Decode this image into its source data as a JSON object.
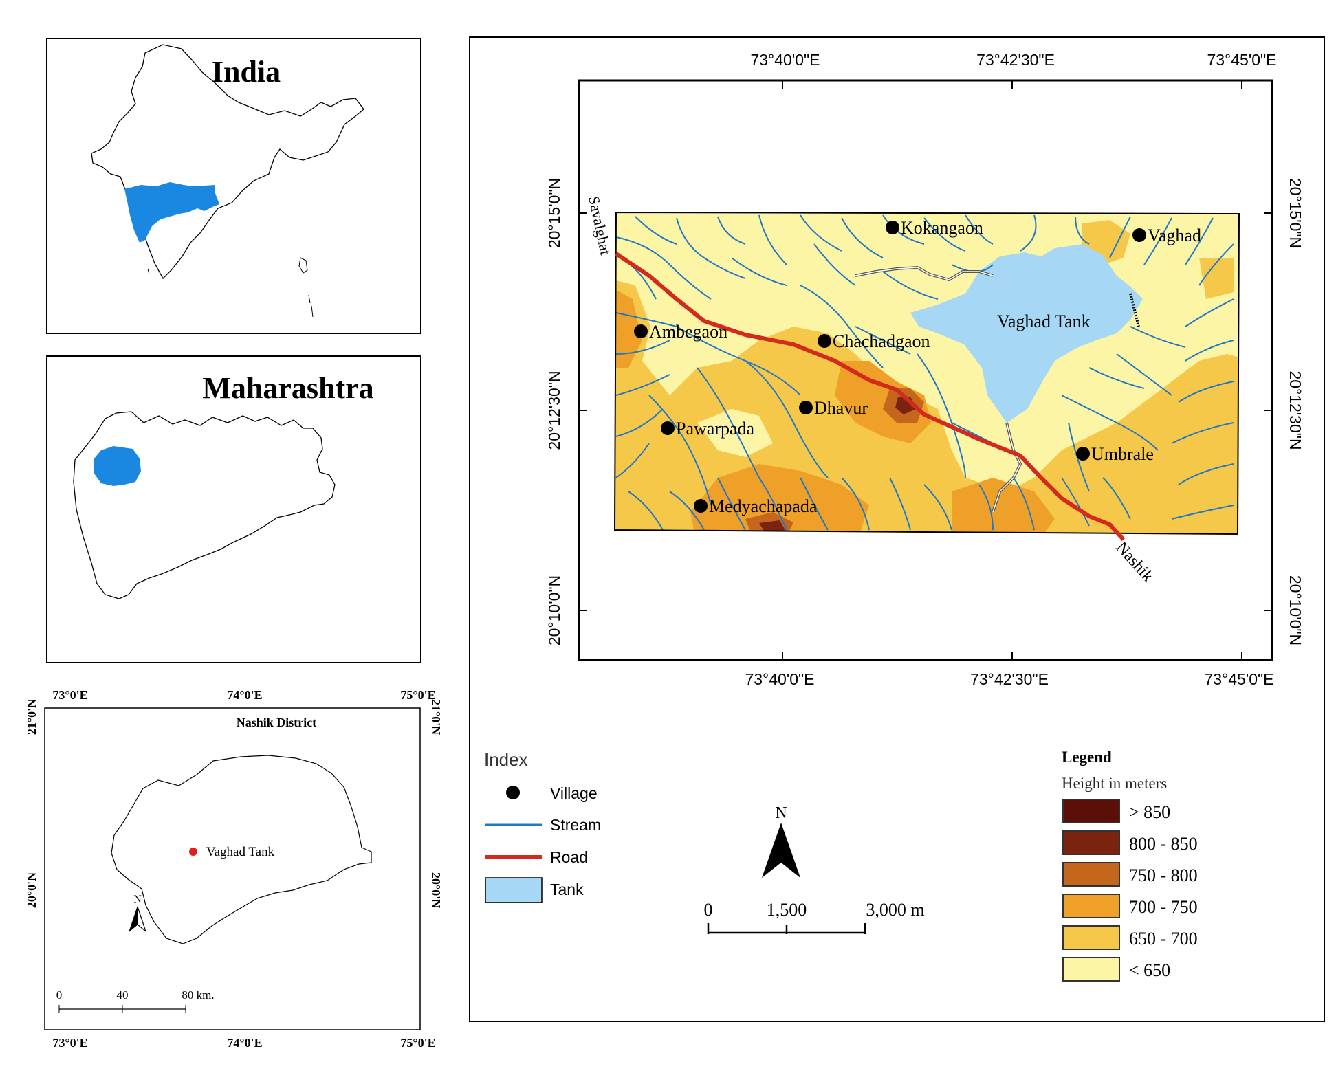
{
  "inset_india": {
    "title": "India"
  },
  "inset_maharashtra": {
    "title": "Maharashtra"
  },
  "inset_nashik": {
    "title": "Nashik District",
    "lon_ticks": [
      "73°0'E",
      "74°0'E",
      "75°0'E"
    ],
    "lat_ticks": [
      "21°0'N",
      "20°0'N"
    ],
    "point_label": "Vaghad Tank",
    "north": "N",
    "scale_labels": [
      "0",
      "40",
      "80 km."
    ]
  },
  "main_map": {
    "top_lon_ticks": [
      "73°40'0\"E",
      "73°42'30\"E",
      "73°45'0\"E"
    ],
    "bottom_lon_ticks": [
      "73°40'0\"E",
      "73°42'30\"E",
      "73°45'0\"E"
    ],
    "left_lat_ticks": [
      "20°15'0\"N",
      "20°12'30\"N",
      "20°10'0\"N"
    ],
    "right_lat_ticks": [
      "20°15'0\"N",
      "20°12'30\"N",
      "20°10'0\"N"
    ],
    "road_ends": [
      "Savalghat",
      "Nashik"
    ],
    "tank_label": "Vaghad Tank",
    "villages": [
      "Kokangaon",
      "Vaghad",
      "Ambegaon",
      "Chachadgaon",
      "Dhavur",
      "Pawarpada",
      "Umbrale",
      "Medyachapada"
    ]
  },
  "index": {
    "title": "Index",
    "items": [
      {
        "label": "Village",
        "symbol": "dot",
        "color": "#000000"
      },
      {
        "label": "Stream",
        "symbol": "line",
        "color": "#1f78c8"
      },
      {
        "label": "Road",
        "symbol": "thickline",
        "color": "#d42a1e"
      },
      {
        "label": "Tank",
        "symbol": "box",
        "color": "#a6d8f5"
      }
    ]
  },
  "north_arrow": {
    "label": "N"
  },
  "scalebar": {
    "labels": [
      "0",
      "1,500",
      "3,000 m"
    ]
  },
  "legend": {
    "title": "Legend",
    "subtitle": "Height in meters",
    "classes": [
      {
        "label": "> 850",
        "color": "#5a1008"
      },
      {
        "label": "800 - 850",
        "color": "#7a2410"
      },
      {
        "label": "750 - 800",
        "color": "#c4661c"
      },
      {
        "label": "700 - 750",
        "color": "#efa028"
      },
      {
        "label": "650 - 700",
        "color": "#f6c84a"
      },
      {
        "label": "< 650",
        "color": "#fdf5a6"
      }
    ]
  },
  "colors": {
    "highland_blue": "#1f8ad8",
    "tank": "#a6d8f5",
    "stream": "#1f78c8",
    "road": "#d42a1e"
  }
}
